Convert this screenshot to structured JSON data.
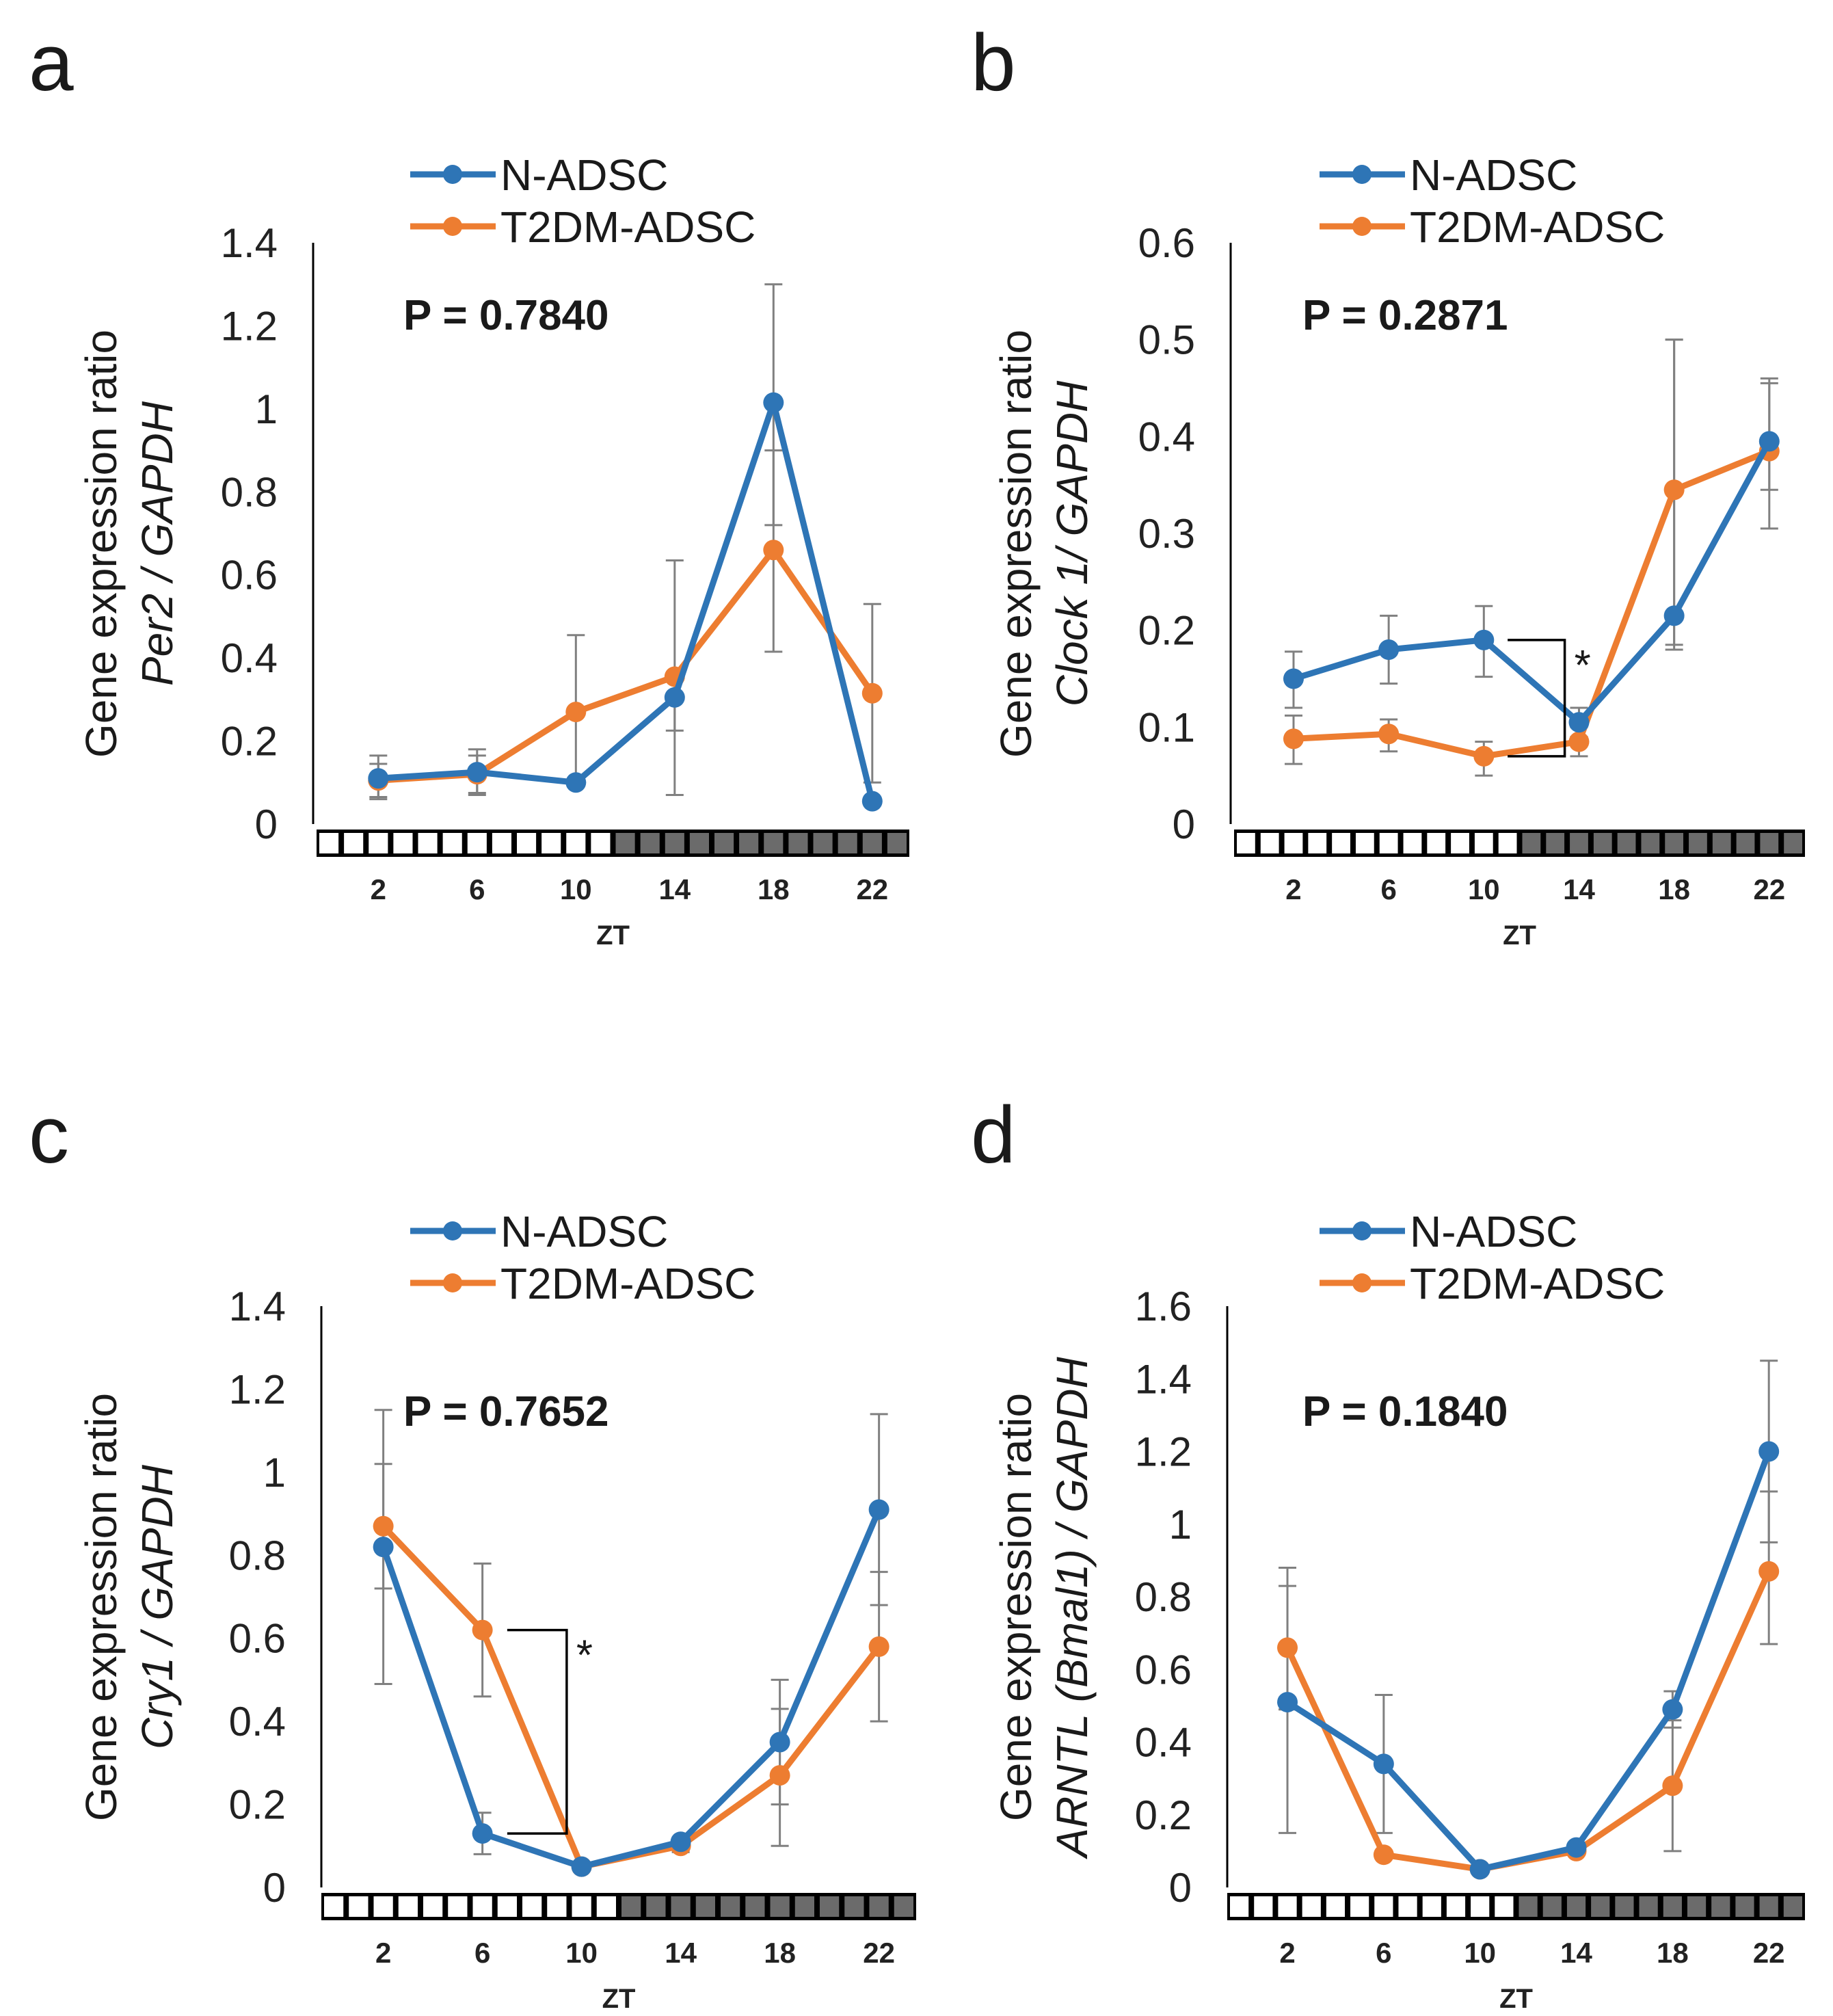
{
  "colors": {
    "n_adsc": "#2E75B6",
    "t2dm_adsc": "#ED7D31",
    "error_bar": "#808080",
    "axis": "#000000",
    "dark_cell": "#6b6b6b"
  },
  "chart_data": [
    {
      "id": "a",
      "type": "line",
      "panel_letter": "a",
      "ylabel_line1": "Gene expression ratio",
      "ylabel_line2": "Per2 / GAPDH",
      "xlabel": "ZT",
      "ylim": [
        0,
        1.4
      ],
      "yticks": [
        0,
        0.2,
        0.4,
        0.6,
        0.8,
        1,
        1.2,
        1.4
      ],
      "ytick_labels": [
        "0",
        "0.2",
        "0.4",
        "0.6",
        "0.8",
        "1",
        "1.2",
        "1.4"
      ],
      "x": [
        2,
        6,
        10,
        14,
        18,
        22
      ],
      "x_labels": [
        "2",
        "6",
        "10",
        "14",
        "18",
        "22"
      ],
      "p_value": "P = 0.7840",
      "legend": [
        "N-ADSC",
        "T2DM-ADSC"
      ],
      "significance": null,
      "series": [
        {
          "name": "N-ADSC",
          "values": [
            0.11,
            0.125,
            0.1,
            0.305,
            1.015,
            0.055
          ],
          "err_upper": [
            0.165,
            0.18,
            0.1,
            0.635,
            1.3,
            0.055
          ],
          "err_lower": [
            0.06,
            0.07,
            0.1,
            0.07,
            0.72,
            0.055
          ]
        },
        {
          "name": "T2DM-ADSC",
          "values": [
            0.105,
            0.12,
            0.27,
            0.355,
            0.66,
            0.315
          ],
          "err_upper": [
            0.145,
            0.165,
            0.455,
            0.355,
            0.9,
            0.53
          ],
          "err_lower": [
            0.065,
            0.075,
            0.09,
            0.225,
            0.415,
            0.1
          ]
        }
      ]
    },
    {
      "id": "b",
      "type": "line",
      "panel_letter": "b",
      "ylabel_line1": "Gene expression ratio",
      "ylabel_line2": "Clock 1/ GAPDH",
      "xlabel": "ZT",
      "ylim": [
        0,
        0.6
      ],
      "yticks": [
        0,
        0.1,
        0.2,
        0.3,
        0.4,
        0.5,
        0.6
      ],
      "ytick_labels": [
        "0",
        "0.1",
        "0.2",
        "0.3",
        "0.4",
        "0.5",
        "0.6"
      ],
      "x": [
        2,
        6,
        10,
        14,
        18,
        22
      ],
      "x_labels": [
        "2",
        "6",
        "10",
        "14",
        "18",
        "22"
      ],
      "p_value": "P = 0.2871",
      "legend": [
        "N-ADSC",
        "T2DM-ADSC"
      ],
      "significance": {
        "label": "*",
        "x": 10,
        "y_high": 0.19,
        "y_low": 0.07
      },
      "series": [
        {
          "name": "N-ADSC",
          "values": [
            0.15,
            0.18,
            0.19,
            0.105,
            0.215,
            0.395
          ],
          "err_upper": [
            0.178,
            0.215,
            0.225,
            0.12,
            0.5,
            0.46
          ],
          "err_lower": [
            0.12,
            0.145,
            0.152,
            0.09,
            0.18,
            0.345
          ]
        },
        {
          "name": "T2DM-ADSC",
          "values": [
            0.088,
            0.093,
            0.07,
            0.085,
            0.345,
            0.385
          ],
          "err_upper": [
            0.112,
            0.108,
            0.085,
            0.1,
            0.5,
            0.455
          ],
          "err_lower": [
            0.062,
            0.075,
            0.05,
            0.07,
            0.185,
            0.305
          ]
        }
      ]
    },
    {
      "id": "c",
      "type": "line",
      "panel_letter": "c",
      "ylabel_line1": "Gene expression ratio",
      "ylabel_line2": "Cry1 / GAPDH",
      "xlabel": "ZT",
      "ylim": [
        0,
        1.4
      ],
      "yticks": [
        0,
        0.2,
        0.4,
        0.6,
        0.8,
        1,
        1.2,
        1.4
      ],
      "ytick_labels": [
        "0",
        "0.2",
        "0.4",
        "0.6",
        "0.8",
        "1",
        "1.2",
        "1.4"
      ],
      "x": [
        2,
        6,
        10,
        14,
        18,
        22
      ],
      "x_labels": [
        "2",
        "6",
        "10",
        "14",
        "18",
        "22"
      ],
      "p_value": "P = 0.7652",
      "legend": [
        "N-ADSC",
        "T2DM-ADSC"
      ],
      "significance": {
        "label": "*",
        "x": 6,
        "y_high": 0.62,
        "y_low": 0.13
      },
      "series": [
        {
          "name": "N-ADSC",
          "values": [
            0.82,
            0.13,
            0.05,
            0.11,
            0.35,
            0.91
          ],
          "err_upper": [
            1.15,
            0.18,
            0.05,
            0.12,
            0.5,
            1.14
          ],
          "err_lower": [
            0.49,
            0.08,
            0.05,
            0.1,
            0.2,
            0.68
          ]
        },
        {
          "name": "T2DM-ADSC",
          "values": [
            0.87,
            0.62,
            0.05,
            0.1,
            0.27,
            0.58
          ],
          "err_upper": [
            1.02,
            0.78,
            0.05,
            0.115,
            0.43,
            0.76
          ],
          "err_lower": [
            0.72,
            0.46,
            0.04,
            0.085,
            0.1,
            0.4
          ]
        }
      ]
    },
    {
      "id": "d",
      "type": "line",
      "panel_letter": "d",
      "ylabel_line1": "Gene expression ratio",
      "ylabel_line2": "ARNTL (Bmal1) / GAPDH",
      "xlabel": "ZT",
      "ylim": [
        0,
        1.6
      ],
      "yticks": [
        0,
        0.2,
        0.4,
        0.6,
        0.8,
        1,
        1.2,
        1.4,
        1.6
      ],
      "ytick_labels": [
        "0",
        "0.2",
        "0.4",
        "0.6",
        "0.8",
        "1",
        "1.2",
        "1.4",
        "1.6"
      ],
      "x": [
        2,
        6,
        10,
        14,
        18,
        22
      ],
      "x_labels": [
        "2",
        "6",
        "10",
        "14",
        "18",
        "22"
      ],
      "p_value": "P = 0.1840",
      "legend": [
        "N-ADSC",
        "T2DM-ADSC"
      ],
      "significance": null,
      "series": [
        {
          "name": "N-ADSC",
          "values": [
            0.51,
            0.34,
            0.05,
            0.11,
            0.49,
            1.2
          ],
          "err_upper": [
            0.88,
            0.53,
            0.05,
            0.12,
            0.54,
            1.45
          ],
          "err_lower": [
            0.15,
            0.15,
            0.05,
            0.1,
            0.44,
            0.95
          ]
        },
        {
          "name": "T2DM-ADSC",
          "values": [
            0.66,
            0.09,
            0.05,
            0.1,
            0.28,
            0.87
          ],
          "err_upper": [
            0.83,
            0.1,
            0.06,
            0.11,
            0.46,
            1.09
          ],
          "err_lower": [
            0.49,
            0.08,
            0.04,
            0.09,
            0.1,
            0.67
          ]
        }
      ]
    }
  ]
}
